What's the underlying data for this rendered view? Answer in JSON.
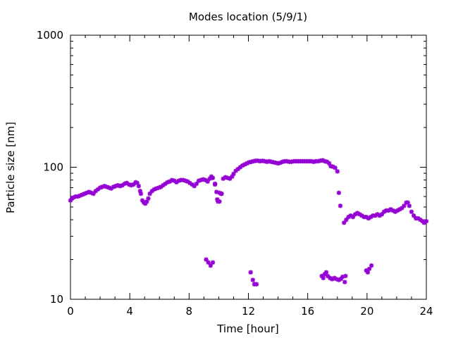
{
  "chart_data": {
    "type": "scatter",
    "title": "Modes location (5/9/1)",
    "xlabel": "Time [hour]",
    "ylabel": "Particle size [nm]",
    "xlim": [
      0,
      24
    ],
    "ylim": [
      10,
      1000
    ],
    "yscale": "log",
    "x_ticks": [
      0,
      4,
      8,
      12,
      16,
      20,
      24
    ],
    "y_ticks": [
      10,
      100,
      1000
    ],
    "x_tick_labels": [
      "0",
      "4",
      "8",
      "12",
      "16",
      "20",
      "24"
    ],
    "y_tick_labels": [
      "10",
      "100",
      "1000"
    ],
    "marker_color": "#9400d3",
    "grid": false,
    "series": [
      {
        "name": "",
        "points": [
          [
            0.0,
            56
          ],
          [
            0.1,
            58
          ],
          [
            0.2,
            59
          ],
          [
            0.35,
            60
          ],
          [
            0.5,
            60
          ],
          [
            0.65,
            61
          ],
          [
            0.8,
            62
          ],
          [
            0.95,
            63
          ],
          [
            1.1,
            64
          ],
          [
            1.25,
            65
          ],
          [
            1.4,
            64
          ],
          [
            1.55,
            63
          ],
          [
            1.7,
            66
          ],
          [
            1.85,
            68
          ],
          [
            2.0,
            70
          ],
          [
            2.15,
            71
          ],
          [
            2.3,
            72
          ],
          [
            2.45,
            71
          ],
          [
            2.6,
            70
          ],
          [
            2.75,
            69
          ],
          [
            2.9,
            71
          ],
          [
            3.05,
            72
          ],
          [
            3.2,
            73
          ],
          [
            3.35,
            72
          ],
          [
            3.5,
            73
          ],
          [
            3.65,
            75
          ],
          [
            3.8,
            76
          ],
          [
            3.95,
            74
          ],
          [
            4.1,
            73
          ],
          [
            4.25,
            74
          ],
          [
            4.4,
            77
          ],
          [
            4.5,
            76
          ],
          [
            4.6,
            72
          ],
          [
            4.7,
            66
          ],
          [
            4.75,
            63
          ],
          [
            4.85,
            56
          ],
          [
            4.95,
            54
          ],
          [
            5.05,
            53
          ],
          [
            5.15,
            55
          ],
          [
            5.25,
            58
          ],
          [
            5.35,
            63
          ],
          [
            5.5,
            66
          ],
          [
            5.65,
            68
          ],
          [
            5.8,
            69
          ],
          [
            5.95,
            70
          ],
          [
            6.1,
            71
          ],
          [
            6.25,
            73
          ],
          [
            6.4,
            75
          ],
          [
            6.55,
            77
          ],
          [
            6.7,
            78
          ],
          [
            6.85,
            80
          ],
          [
            7.0,
            79
          ],
          [
            7.15,
            77
          ],
          [
            7.3,
            79
          ],
          [
            7.45,
            80
          ],
          [
            7.6,
            80
          ],
          [
            7.75,
            79
          ],
          [
            7.9,
            78
          ],
          [
            8.05,
            76
          ],
          [
            8.2,
            74
          ],
          [
            8.35,
            72
          ],
          [
            8.5,
            75
          ],
          [
            8.65,
            79
          ],
          [
            8.8,
            80
          ],
          [
            8.95,
            81
          ],
          [
            9.1,
            80
          ],
          [
            9.25,
            78
          ],
          [
            9.4,
            82
          ],
          [
            9.5,
            85
          ],
          [
            9.6,
            83
          ],
          [
            9.75,
            74
          ],
          [
            9.85,
            65
          ],
          [
            9.9,
            57
          ],
          [
            9.95,
            55
          ],
          [
            10.05,
            55
          ],
          [
            10.15,
            63
          ],
          [
            10.3,
            82
          ],
          [
            10.45,
            84
          ],
          [
            10.6,
            83
          ],
          [
            10.75,
            82
          ],
          [
            10.9,
            85
          ],
          [
            11.0,
            89
          ],
          [
            11.15,
            94
          ],
          [
            11.3,
            97
          ],
          [
            11.45,
            100
          ],
          [
            11.6,
            103
          ],
          [
            11.75,
            105
          ],
          [
            11.9,
            107
          ],
          [
            12.05,
            109
          ],
          [
            12.2,
            110
          ],
          [
            12.35,
            111
          ],
          [
            12.5,
            112
          ],
          [
            12.65,
            112
          ],
          [
            12.8,
            111
          ],
          [
            12.95,
            112
          ],
          [
            13.1,
            111
          ],
          [
            13.25,
            110
          ],
          [
            13.4,
            111
          ],
          [
            13.55,
            110
          ],
          [
            13.7,
            109
          ],
          [
            13.85,
            108
          ],
          [
            14.0,
            107
          ],
          [
            14.15,
            108
          ],
          [
            14.3,
            110
          ],
          [
            14.45,
            111
          ],
          [
            14.6,
            111
          ],
          [
            14.75,
            110
          ],
          [
            14.9,
            110
          ],
          [
            15.05,
            111
          ],
          [
            15.2,
            111
          ],
          [
            15.35,
            111
          ],
          [
            15.5,
            111
          ],
          [
            15.65,
            111
          ],
          [
            15.8,
            111
          ],
          [
            15.95,
            111
          ],
          [
            16.1,
            111
          ],
          [
            16.25,
            111
          ],
          [
            16.4,
            110
          ],
          [
            16.55,
            111
          ],
          [
            16.7,
            111
          ],
          [
            16.85,
            112
          ],
          [
            17.0,
            113
          ],
          [
            17.15,
            111
          ],
          [
            17.3,
            110
          ],
          [
            17.45,
            107
          ],
          [
            17.55,
            102
          ],
          [
            17.7,
            101
          ],
          [
            17.85,
            99
          ],
          [
            18.0,
            93
          ],
          [
            18.1,
            64
          ],
          [
            18.2,
            51
          ],
          [
            18.45,
            38
          ],
          [
            18.6,
            40
          ],
          [
            18.75,
            42
          ],
          [
            18.9,
            43
          ],
          [
            19.05,
            42
          ],
          [
            19.2,
            44
          ],
          [
            19.35,
            45
          ],
          [
            19.5,
            44
          ],
          [
            19.65,
            43
          ],
          [
            19.8,
            42
          ],
          [
            19.95,
            42
          ],
          [
            20.1,
            41
          ],
          [
            20.25,
            42
          ],
          [
            20.4,
            43
          ],
          [
            20.55,
            43
          ],
          [
            20.7,
            44
          ],
          [
            20.85,
            43
          ],
          [
            21.0,
            44
          ],
          [
            21.15,
            46
          ],
          [
            21.3,
            47
          ],
          [
            21.45,
            47
          ],
          [
            21.6,
            48
          ],
          [
            21.75,
            47
          ],
          [
            21.9,
            46
          ],
          [
            22.05,
            47
          ],
          [
            22.2,
            48
          ],
          [
            22.35,
            49
          ],
          [
            22.5,
            51
          ],
          [
            22.65,
            54
          ],
          [
            22.75,
            54
          ],
          [
            22.85,
            51
          ],
          [
            23.0,
            46
          ],
          [
            23.15,
            43
          ],
          [
            23.3,
            41
          ],
          [
            23.45,
            41
          ],
          [
            23.6,
            40
          ],
          [
            23.75,
            39
          ],
          [
            23.85,
            38
          ],
          [
            24.0,
            39
          ],
          [
            9.15,
            20
          ],
          [
            9.3,
            19
          ],
          [
            9.45,
            18
          ],
          [
            9.6,
            19
          ],
          [
            9.75,
            75
          ],
          [
            10.05,
            64
          ],
          [
            10.2,
            63
          ],
          [
            12.15,
            16
          ],
          [
            12.3,
            14
          ],
          [
            12.4,
            13
          ],
          [
            12.55,
            13
          ],
          [
            16.95,
            15
          ],
          [
            17.05,
            14.5
          ],
          [
            17.15,
            15.5
          ],
          [
            17.25,
            16
          ],
          [
            17.35,
            15
          ],
          [
            17.5,
            14.5
          ],
          [
            17.65,
            14.2
          ],
          [
            17.8,
            14.5
          ],
          [
            17.95,
            14.2
          ],
          [
            18.1,
            14
          ],
          [
            18.25,
            14.3
          ],
          [
            18.35,
            14.8
          ],
          [
            18.5,
            13.5
          ],
          [
            18.55,
            15
          ],
          [
            19.95,
            16.5
          ],
          [
            20.05,
            16
          ],
          [
            20.15,
            17
          ],
          [
            20.3,
            18
          ]
        ]
      }
    ]
  }
}
